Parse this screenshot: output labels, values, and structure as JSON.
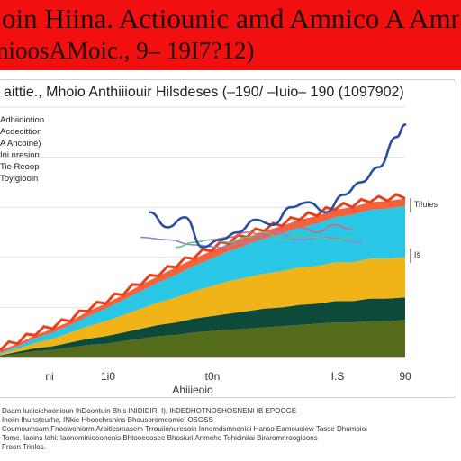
{
  "header": {
    "title_line1": "oin  Hiina.  Actiounic  amd  Amnico  A   Amniolcions",
    "title_line2": "nioosAMoic.,  9–    19I7?12)",
    "background": "#f20f0f"
  },
  "legend": {
    "items": [
      "Adhiidiotion",
      "Acdecittion",
      "A Ancoine)",
      "Ini  nresion",
      "Tie Reoop",
      "Toylgiooin"
    ]
  },
  "footer": {
    "lines": [
      "Daam  Iuoiciehoonioun  IhDoontuin  Bhis  INIDIDIR,  I),  IhDEDHOTNOSHOSNENI  IB  EPOOGE",
      "Ihoiin  Ihunsteurhe,  INkie  Hhoochrsnins  Bhousoromeomiei  OSOSS",
      "Coumoumsam  Fnoowoniorm  Aroiticsmasem  Trrouiionuresoin  Innomdsmnonioi  Hanso  Eamouoiew  Tasse  Dhumoioi",
      "Tome.   Iaoins  Iahi:  Iaonominiooonenis  Bhtooeoosee  Bhosiuri  Anmeho  Tohiciniiai  Biraromnroogioons",
      "Froon  Trinlos."
    ]
  },
  "chart_data": {
    "type": "area",
    "title": "aittie., Mhoio Anthiiiouir Hilsdeses (–190/ –Iuio– 190 (1097902)",
    "xlabel": "Ahiiieoio",
    "ylabel": "",
    "x_tick_labels": [
      "ni",
      "1i0",
      "t0n",
      "I.S",
      "90"
    ],
    "x": [
      0,
      1,
      2,
      3,
      4,
      5,
      6,
      7,
      8,
      9,
      10,
      11,
      12,
      13,
      14,
      15,
      16,
      17,
      18,
      19,
      20,
      21,
      22,
      23
    ],
    "xlim": [
      0,
      23
    ],
    "ylim": [
      0,
      100
    ],
    "grid": true,
    "legend_position": "left",
    "area_series": [
      {
        "color": "#556b1c",
        "values": [
          0.5,
          1.5,
          2.5,
          3,
          4,
          5,
          5.5,
          6.5,
          7.5,
          8.5,
          9,
          10,
          10.5,
          11,
          11.5,
          12,
          12.5,
          13,
          13.5,
          14,
          14,
          14.5,
          14.5,
          15
        ]
      },
      {
        "color": "#0e4a3a",
        "values": [
          0.3,
          0.8,
          1.2,
          1.5,
          2,
          2.5,
          3,
          3.5,
          4,
          4.5,
          5,
          5.5,
          6,
          6.5,
          7,
          7.5,
          7.5,
          8,
          8,
          8.5,
          8.5,
          9,
          9,
          9
        ]
      },
      {
        "color": "#f0b418",
        "values": [
          0.5,
          1.2,
          2,
          3,
          4,
          5,
          6,
          7,
          8,
          9,
          10,
          11,
          12,
          13,
          13.5,
          14,
          14.5,
          15,
          15,
          15.5,
          15.5,
          16,
          16,
          16
        ]
      },
      {
        "color": "#29c6e6",
        "values": [
          0.5,
          1,
          2,
          2.5,
          3,
          4,
          5,
          6,
          7,
          8,
          9,
          10,
          11,
          12,
          13,
          14,
          15,
          16,
          17,
          18,
          19,
          19.5,
          20,
          20.5
        ]
      },
      {
        "color": "#f4623c",
        "values": [
          1,
          1,
          1.2,
          1.5,
          1.5,
          2,
          2,
          2,
          2.5,
          2.5,
          3,
          3,
          3,
          3,
          3,
          3,
          3,
          3,
          3,
          3,
          3,
          3,
          3,
          3
        ]
      }
    ],
    "line_series": [
      {
        "color": "#9a84c8",
        "x": [
          8,
          9.5,
          11,
          12.5,
          14,
          15.5,
          17,
          18.5,
          20.5
        ],
        "values": [
          48,
          47,
          45,
          44,
          46,
          50,
          47,
          48,
          46
        ]
      },
      {
        "color": "#5fc48a",
        "x": [
          10,
          11,
          12,
          13,
          14,
          15,
          16,
          17,
          18,
          19,
          20
        ],
        "values": [
          44,
          46,
          47,
          46,
          48,
          50,
          47,
          49,
          48,
          47,
          48
        ]
      },
      {
        "color": "#e0607a",
        "x": [
          12,
          13,
          14,
          15,
          16,
          17,
          18,
          19,
          20
        ],
        "values": [
          47,
          48,
          50,
          49,
          51,
          52,
          50,
          53,
          51
        ]
      },
      {
        "color": "#2a4f9e",
        "x": [
          8.5,
          9.5,
          10.5,
          11.5,
          12.5,
          13.5,
          14.5,
          15.5,
          16.5,
          17.5,
          18.5,
          19.5,
          20.5,
          21.5,
          22.5,
          23
        ],
        "values": [
          58,
          52,
          56,
          44,
          47,
          50,
          55,
          53,
          60,
          62,
          58,
          65,
          70,
          76,
          88,
          93
        ]
      }
    ],
    "annotations": [
      {
        "text": "Ti!uies",
        "x": 23.3,
        "y": 60
      },
      {
        "text": "Iš",
        "x": 23.3,
        "y": 40
      }
    ]
  }
}
